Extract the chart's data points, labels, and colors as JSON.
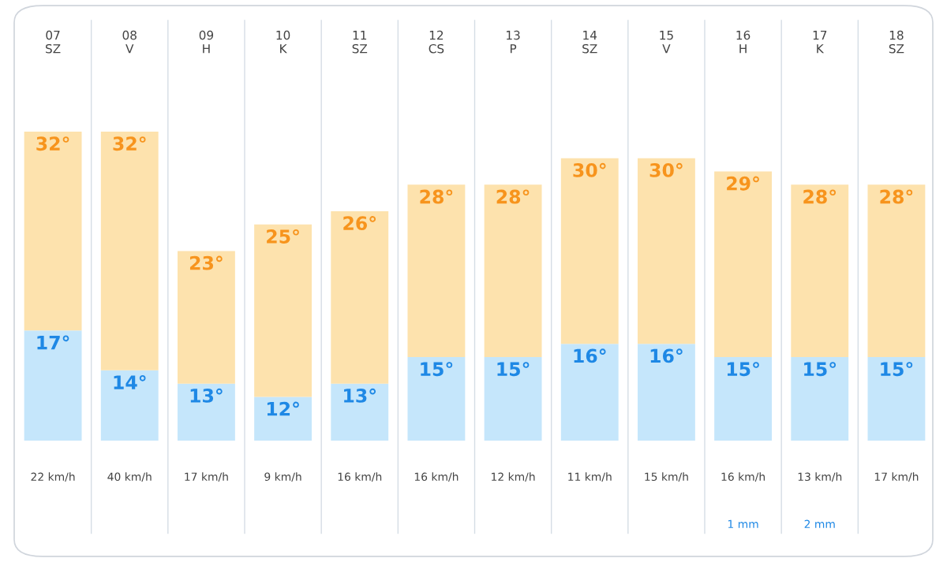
{
  "chart_data": {
    "type": "bar",
    "categories": [
      "07\nSZ",
      "08\nV",
      "09\nH",
      "10\nK",
      "11\nSZ",
      "12\nCS",
      "13\nP",
      "14\nSZ",
      "15\nV",
      "16\nH",
      "17\nK",
      "18\nSZ"
    ],
    "series": [
      {
        "color": "#c5e6fb",
        "values": [
          17,
          14,
          13,
          12,
          13,
          15,
          15,
          16,
          16,
          15,
          15,
          15
        ],
        "value_labels": [
          "17°",
          "14°",
          "13°",
          "12°",
          "13°",
          "15°",
          "15°",
          "16°",
          "16°",
          "15°",
          "15°",
          "15°"
        ]
      },
      {
        "color": "#fde2ad",
        "values": [
          15,
          18,
          10,
          13,
          13,
          13,
          13,
          14,
          14,
          14,
          13,
          13
        ]
      }
    ],
    "totals": [
      "32°",
      "32°",
      "23°",
      "25°",
      "26°",
      "28°",
      "28°",
      "30°",
      "30°",
      "29°",
      "28°",
      "28°"
    ],
    "stacked": true,
    "ylim": [
      8.7,
      32
    ],
    "tick_labels": "x",
    "grid": false,
    "legend": false,
    "annotations": [
      "22 km/h",
      "40 km/h",
      "17 km/h",
      "9 km/h",
      "16 km/h",
      "16 km/h",
      "12 km/h",
      "11 km/h",
      "15 km/h",
      "16 km/h",
      "13 km/h",
      "17 km/h",
      "1 mm",
      "2 mm"
    ]
  }
}
